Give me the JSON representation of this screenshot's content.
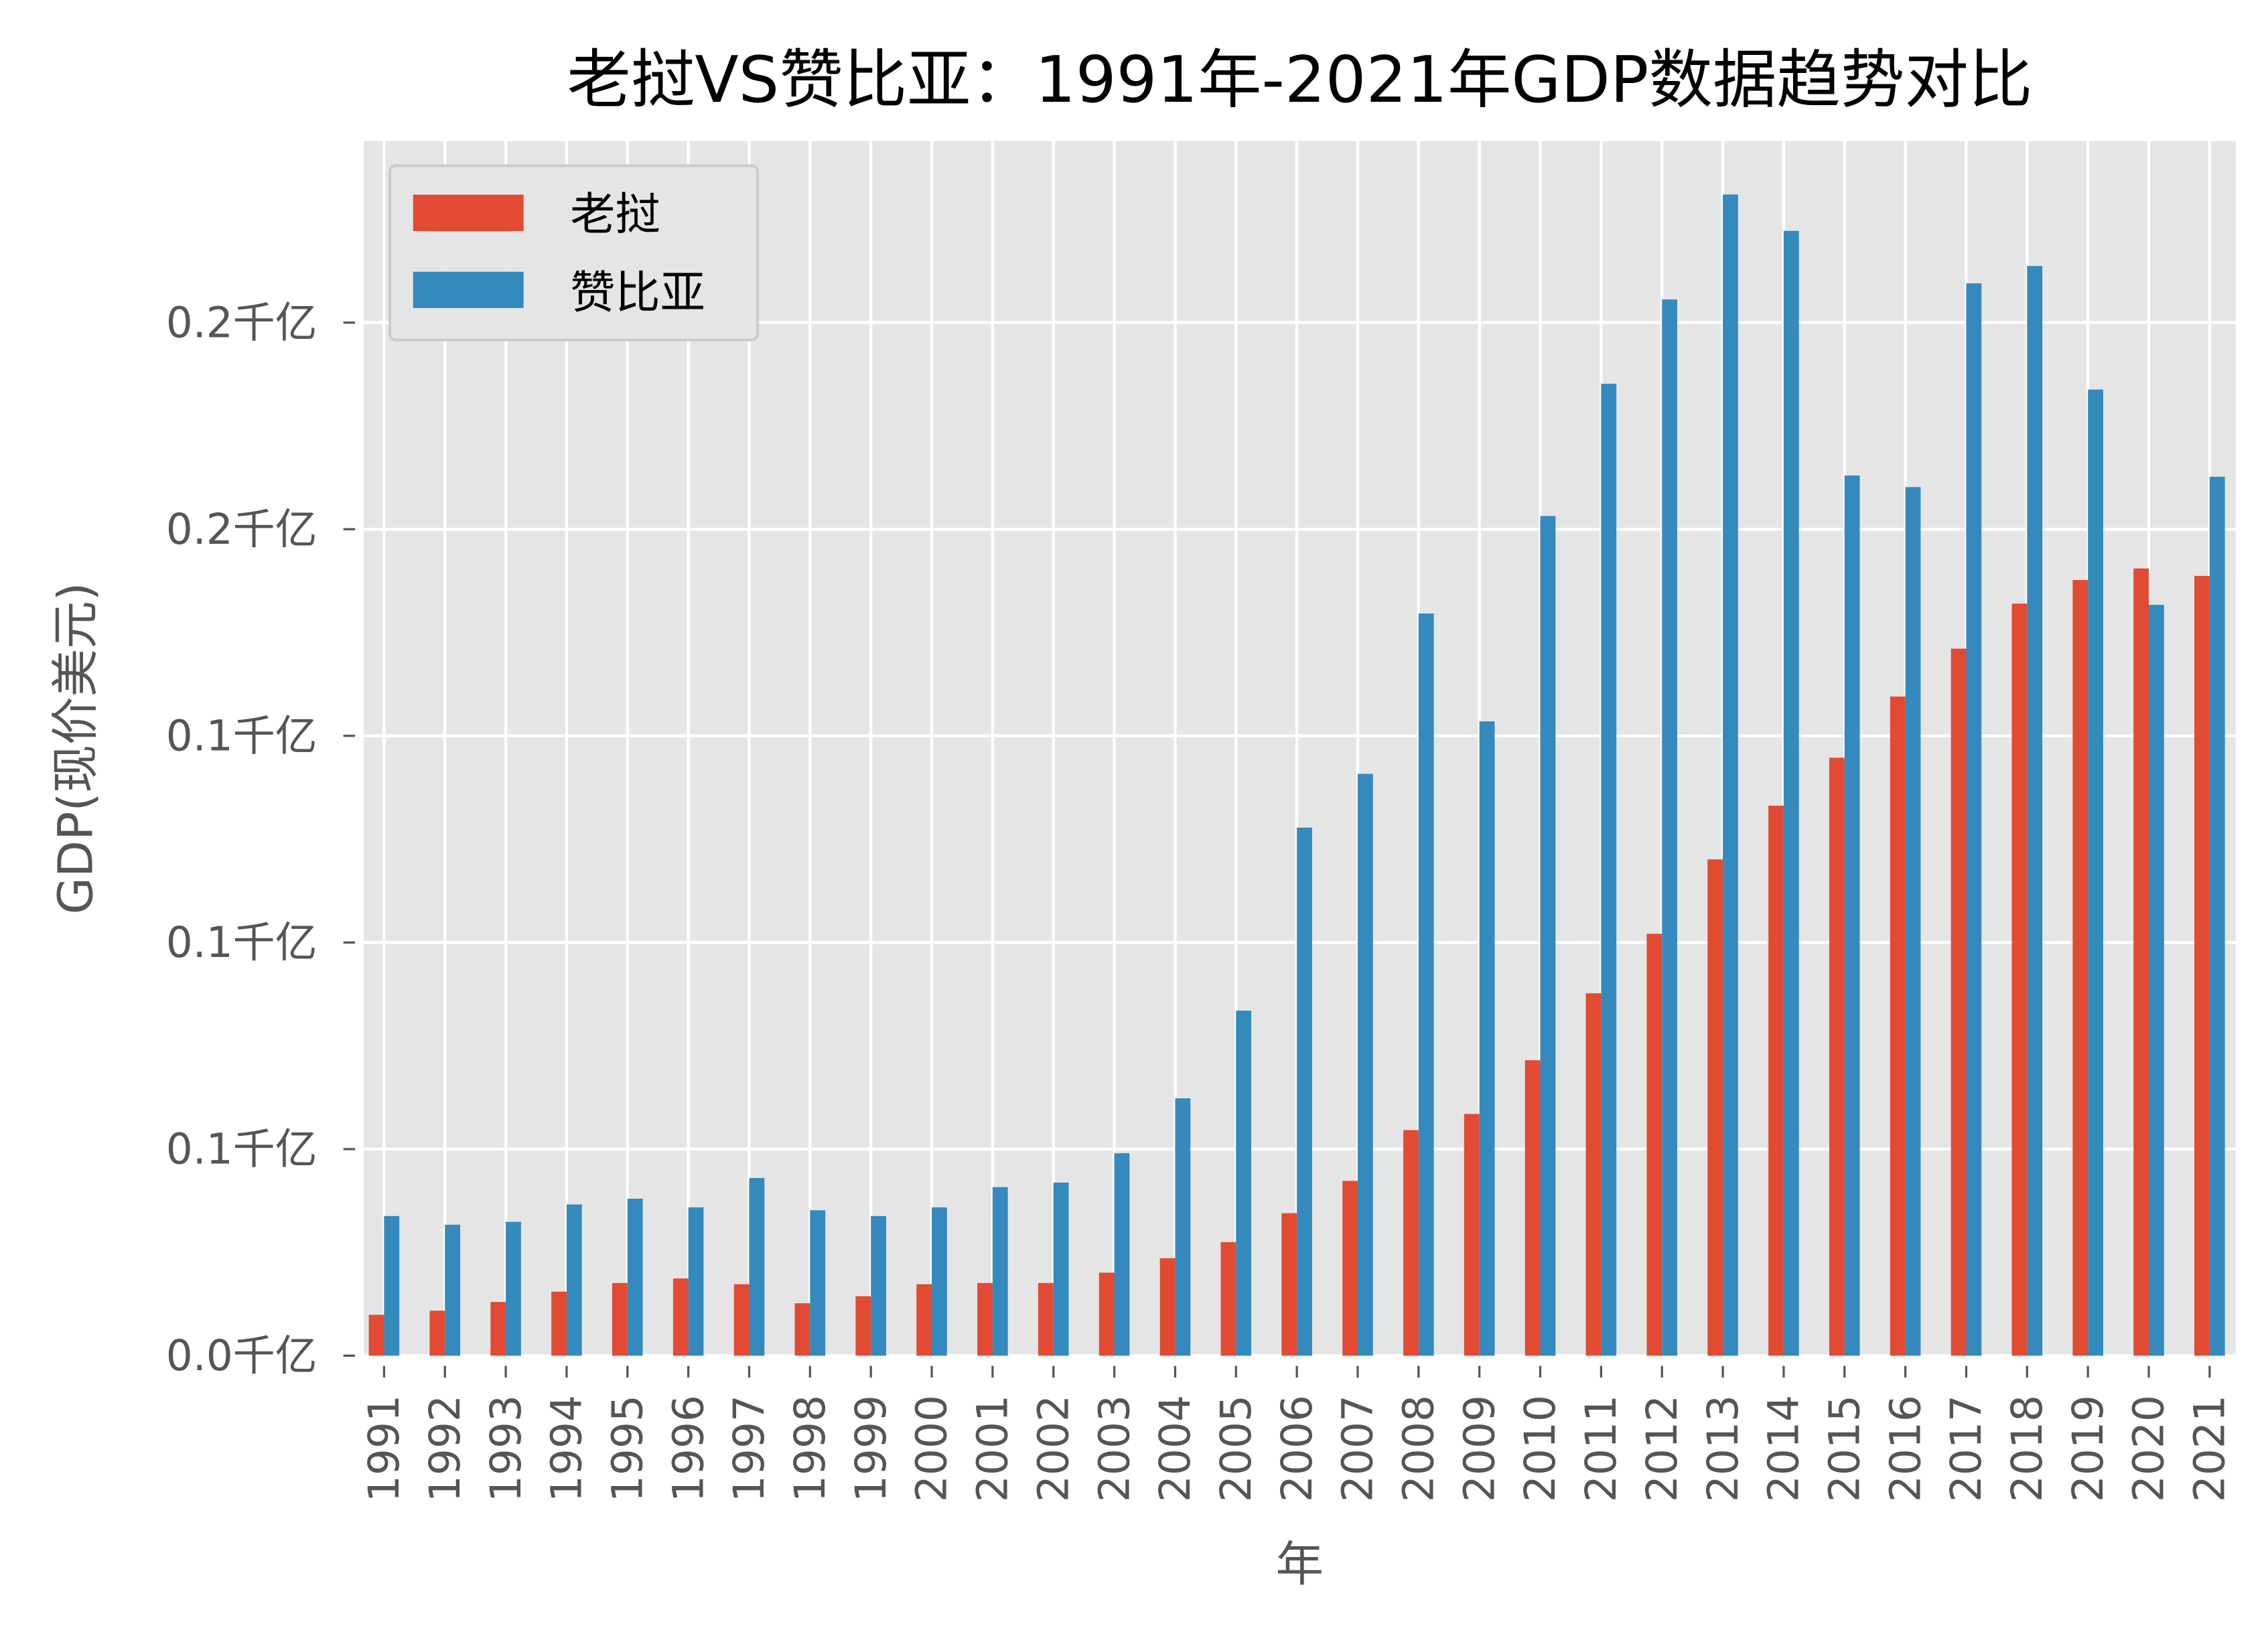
{
  "chart_data": {
    "type": "bar",
    "title": "老挝VS赞比亚：1991年-2021年GDP数据趋势对比",
    "xlabel": "年",
    "ylabel": "GDP(现价美元)",
    "categories": [
      "1991",
      "1992",
      "1993",
      "1994",
      "1995",
      "1996",
      "1997",
      "1998",
      "1999",
      "2000",
      "2001",
      "2002",
      "2003",
      "2004",
      "2005",
      "2006",
      "2007",
      "2008",
      "2009",
      "2010",
      "2011",
      "2012",
      "2013",
      "2014",
      "2015",
      "2016",
      "2017",
      "2018",
      "2019",
      "2020",
      "2021"
    ],
    "value_unit": "billion USD (shown as 千亿 on axis)",
    "yticks": [
      0,
      5,
      10,
      15,
      20,
      25
    ],
    "ytick_labels": [
      "0.0千亿",
      "0.1千亿",
      "0.1千亿",
      "0.1千亿",
      "0.2千亿",
      "0.2千亿"
    ],
    "ylim": [
      0,
      29.4
    ],
    "grid": true,
    "legend_position": "top-left",
    "series": [
      {
        "name": "老挝",
        "color": "#E24A33",
        "values": [
          0.99,
          1.09,
          1.3,
          1.55,
          1.76,
          1.87,
          1.73,
          1.27,
          1.44,
          1.73,
          1.76,
          1.76,
          2.01,
          2.36,
          2.75,
          3.45,
          4.23,
          5.46,
          5.85,
          7.15,
          8.77,
          10.21,
          12.01,
          13.31,
          14.47,
          15.95,
          17.11,
          18.2,
          18.77,
          19.05,
          18.87
        ]
      },
      {
        "name": "赞比亚",
        "color": "#348ABD",
        "values": [
          3.38,
          3.17,
          3.24,
          3.66,
          3.8,
          3.59,
          4.3,
          3.52,
          3.38,
          3.59,
          4.08,
          4.19,
          4.9,
          6.23,
          8.35,
          12.78,
          14.08,
          17.96,
          15.35,
          20.32,
          23.52,
          25.56,
          28.1,
          27.22,
          21.3,
          21.02,
          25.95,
          26.37,
          23.38,
          18.17,
          21.27
        ]
      }
    ]
  }
}
